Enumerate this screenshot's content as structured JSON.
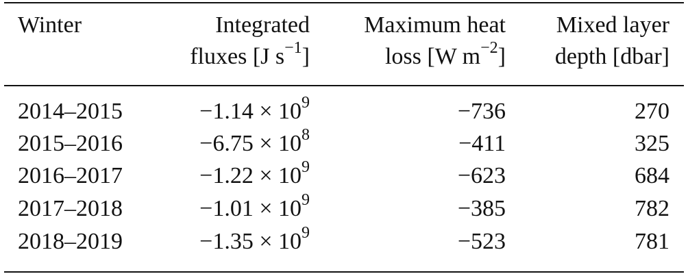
{
  "table": {
    "headers": {
      "winter": "Winter",
      "flux_line1": "Integrated",
      "flux_line2_text": "fluxes [J s",
      "flux_line2_exp": "−1",
      "flux_line2_close": "]",
      "heat_line1": "Maximum heat",
      "heat_line2_text": "loss [W m",
      "heat_line2_exp": "−2",
      "heat_line2_close": "]",
      "mld_line1": "Mixed layer",
      "mld_line2": "depth [dbar]"
    },
    "rows": [
      {
        "winter": "2014–2015",
        "flux_mantissa": "−1.14 × 10",
        "flux_exp": "9",
        "heat_loss": "−736",
        "mld": "270"
      },
      {
        "winter": "2015–2016",
        "flux_mantissa": "−6.75 × 10",
        "flux_exp": "8",
        "heat_loss": "−411",
        "mld": "325"
      },
      {
        "winter": "2016–2017",
        "flux_mantissa": "−1.22 × 10",
        "flux_exp": "9",
        "heat_loss": "−623",
        "mld": "684"
      },
      {
        "winter": "2017–2018",
        "flux_mantissa": "−1.01 × 10",
        "flux_exp": "9",
        "heat_loss": "−385",
        "mld": "782"
      },
      {
        "winter": "2018–2019",
        "flux_mantissa": "−1.35 × 10",
        "flux_exp": "9",
        "heat_loss": "−523",
        "mld": "781"
      }
    ]
  }
}
